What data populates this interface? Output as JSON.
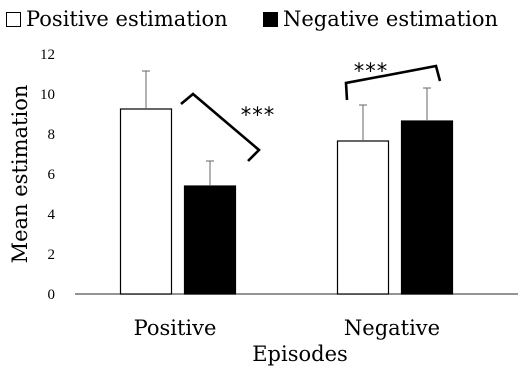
{
  "chart_data": {
    "type": "bar",
    "title": "",
    "xlabel": "Episodes",
    "ylabel": "Mean estimation",
    "categories": [
      "Positive",
      "Negative"
    ],
    "ylim": [
      0,
      12
    ],
    "yticks": [
      0,
      2,
      4,
      6,
      8,
      10,
      12
    ],
    "grid": false,
    "legend_position": "top",
    "series": [
      {
        "name": "Positive estimation",
        "color": "#ffffff",
        "values": [
          9.25,
          7.65
        ],
        "errors": [
          1.9,
          1.8
        ]
      },
      {
        "name": "Negative estimation",
        "color": "#000000",
        "values": [
          5.4,
          8.65
        ],
        "errors": [
          1.25,
          1.65
        ]
      }
    ],
    "annotations": [
      {
        "text": "***",
        "category": "Positive"
      },
      {
        "text": "***",
        "category": "Negative"
      }
    ]
  }
}
